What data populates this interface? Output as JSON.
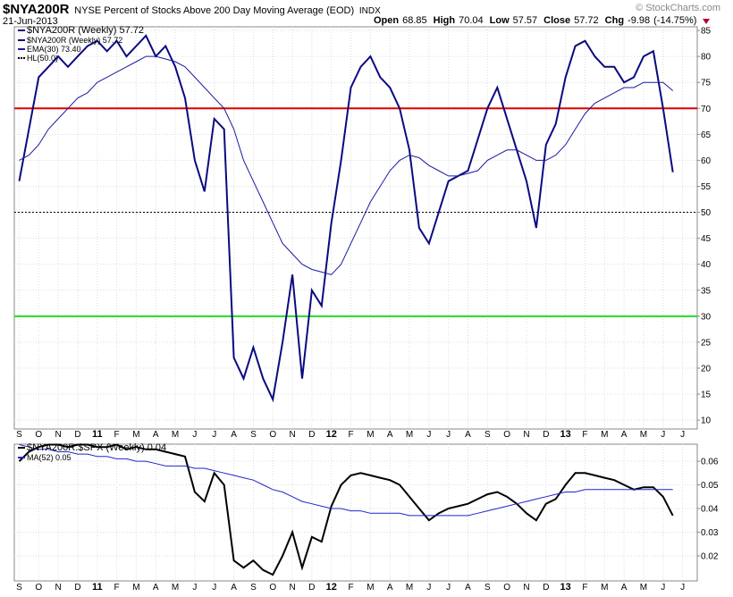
{
  "header": {
    "symbol": "$NYA200R",
    "description": "NYSE Percent of Stocks Above 200 Day Moving Average (EOD)",
    "exchange": "INDX",
    "date": "21-Jun-2013",
    "source": "© StockCharts.com",
    "quote": [
      {
        "label": "Open",
        "value": 68.85
      },
      {
        "label": "High",
        "value": 70.04
      },
      {
        "label": "Low",
        "value": 57.57
      },
      {
        "label": "Close",
        "value": 57.72
      },
      {
        "label": "Chg",
        "value": -9.98
      }
    ],
    "change_label": "(-14.75%)"
  },
  "chart_data": [
    {
      "type": "line",
      "legend_title": "$NYA200R (Weekly) 57.72",
      "categories": [
        "S",
        null,
        "O",
        null,
        "N",
        null,
        "D",
        null,
        "11",
        null,
        "F",
        null,
        "M",
        null,
        "A",
        null,
        "M",
        null,
        "J",
        null,
        "J",
        null,
        "A",
        null,
        "S",
        null,
        "O",
        null,
        "N",
        null,
        "D",
        null,
        "12",
        null,
        "F",
        null,
        "M",
        null,
        "A",
        null,
        "M",
        null,
        "J",
        null,
        "J",
        null,
        "A",
        null,
        "S",
        null,
        "O",
        null,
        "N",
        null,
        "D",
        null,
        "13",
        null,
        "F",
        null,
        "M",
        null,
        "A",
        null,
        "M",
        null,
        "J",
        null,
        "J",
        null
      ],
      "series": [
        {
          "name": "$NYA200R (Weekly) 57.72",
          "color": "#0a0a80",
          "values": [
            56,
            66,
            76,
            78,
            80,
            78,
            80,
            82,
            83,
            81,
            83,
            80,
            82,
            84,
            80,
            82,
            78,
            72,
            60,
            54,
            68,
            66,
            22,
            18,
            24,
            18,
            14,
            25,
            38,
            18,
            35,
            32,
            48,
            60,
            74,
            78,
            80,
            76,
            74,
            70,
            62,
            47,
            44,
            50,
            56,
            57,
            58,
            64,
            70,
            74,
            68,
            62,
            56,
            47,
            63,
            67,
            76,
            82,
            83,
            80,
            78,
            78,
            75,
            76,
            80,
            81,
            70,
            57.72,
            null,
            null
          ]
        },
        {
          "name": "EMA(30) 73.40",
          "color": "#1a1aa0",
          "values": [
            60,
            61,
            63,
            66,
            68,
            70,
            72,
            73,
            75,
            76,
            77,
            78,
            79,
            80,
            80,
            79.5,
            79,
            78,
            76,
            74,
            72,
            70,
            66,
            60,
            56,
            52,
            48,
            44,
            42,
            40,
            39,
            38.5,
            38,
            40,
            44,
            48,
            52,
            55,
            58,
            60,
            61,
            60.5,
            59,
            58,
            57,
            57,
            57.5,
            58,
            60,
            61,
            62,
            62,
            61,
            60,
            60,
            61,
            63,
            66,
            69,
            71,
            72,
            73,
            74,
            74,
            75,
            75,
            75,
            73.4,
            null,
            null
          ]
        }
      ],
      "reference_lines": [
        {
          "value": 70,
          "color": "#dd0000"
        },
        {
          "value": 30,
          "color": "#22dd22"
        },
        {
          "value": 50,
          "name": "HL(50.0)",
          "color": "#000000",
          "dashed": true
        }
      ],
      "ylim": [
        8.3,
        85.7
      ],
      "yticks": [
        10,
        15,
        20,
        25,
        30,
        35,
        40,
        45,
        50,
        55,
        60,
        65,
        70,
        75,
        80,
        85
      ],
      "grid": true
    },
    {
      "type": "line",
      "categories": [
        "S",
        null,
        "O",
        null,
        "N",
        null,
        "D",
        null,
        "11",
        null,
        "F",
        null,
        "M",
        null,
        "A",
        null,
        "M",
        null,
        "J",
        null,
        "J",
        null,
        "A",
        null,
        "S",
        null,
        "O",
        null,
        "N",
        null,
        "D",
        null,
        "12",
        null,
        "F",
        null,
        "M",
        null,
        "A",
        null,
        "M",
        null,
        "J",
        null,
        "J",
        null,
        "A",
        null,
        "S",
        null,
        "O",
        null,
        "N",
        null,
        "D",
        null,
        "13",
        null,
        "F",
        null,
        "M",
        null,
        "A",
        null,
        "M",
        null,
        "J",
        null,
        "J",
        null
      ],
      "series": [
        {
          "name": "$NYA200R:$SPX (Weekly) 0.04",
          "color": "#000000",
          "values": [
            0.06,
            0.064,
            0.066,
            0.067,
            0.067,
            0.066,
            0.067,
            0.067,
            0.066,
            0.066,
            0.067,
            0.065,
            0.066,
            0.065,
            0.065,
            0.064,
            0.063,
            0.062,
            0.047,
            0.043,
            0.055,
            0.05,
            0.018,
            0.015,
            0.018,
            0.014,
            0.012,
            0.02,
            0.03,
            0.015,
            0.028,
            0.026,
            0.041,
            0.05,
            0.054,
            0.055,
            0.054,
            0.053,
            0.052,
            0.05,
            0.045,
            0.04,
            0.035,
            0.038,
            0.04,
            0.041,
            0.042,
            0.044,
            0.046,
            0.047,
            0.045,
            0.042,
            0.038,
            0.035,
            0.042,
            0.044,
            0.05,
            0.055,
            0.055,
            0.054,
            0.053,
            0.052,
            0.05,
            0.048,
            0.049,
            0.049,
            0.045,
            0.037,
            null,
            null
          ]
        },
        {
          "name": "MA(52) 0.05",
          "color": "#2222cc",
          "values": [
            0.067,
            0.066,
            0.065,
            0.065,
            0.064,
            0.064,
            0.063,
            0.063,
            0.062,
            0.062,
            0.061,
            0.061,
            0.06,
            0.06,
            0.059,
            0.058,
            0.058,
            0.058,
            0.057,
            0.057,
            0.056,
            0.055,
            0.054,
            0.053,
            0.052,
            0.05,
            0.048,
            0.047,
            0.045,
            0.043,
            0.042,
            0.041,
            0.04,
            0.04,
            0.039,
            0.039,
            0.038,
            0.038,
            0.038,
            0.038,
            0.037,
            0.037,
            0.037,
            0.037,
            0.037,
            0.037,
            0.037,
            0.038,
            0.039,
            0.04,
            0.041,
            0.042,
            0.043,
            0.044,
            0.045,
            0.046,
            0.047,
            0.047,
            0.048,
            0.048,
            0.048,
            0.048,
            0.048,
            0.048,
            0.048,
            0.048,
            0.048,
            0.048,
            null,
            null
          ]
        }
      ],
      "ylim": [
        0.0094,
        0.0672
      ],
      "yticks": [
        0.02,
        0.03,
        0.04,
        0.05,
        0.06
      ],
      "grid": true
    }
  ]
}
